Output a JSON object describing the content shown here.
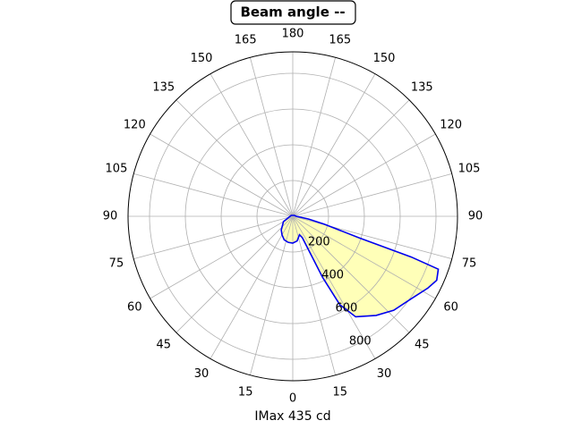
{
  "chart_data": {
    "type": "polar",
    "title": "Beam angle --",
    "xlabel": "IMax 435 cd",
    "x": [
      0,
      10,
      20,
      24,
      26,
      28,
      32,
      40,
      47,
      55,
      62,
      66,
      70,
      71,
      72,
      76,
      80,
      90,
      120,
      180,
      240,
      300,
      320,
      330,
      340,
      350,
      360
    ],
    "values": [
      150,
      140,
      110,
      130,
      380,
      560,
      663,
      724,
      771,
      806,
      855,
      880,
      865,
      700,
      388,
      180,
      90,
      20,
      10,
      5,
      10,
      60,
      100,
      120,
      140,
      148,
      150
    ],
    "color": "#0000ee",
    "fill_color": "#ffffb8",
    "xlim": [
      0,
      360
    ],
    "xticks": [
      0,
      15,
      30,
      45,
      60,
      75,
      90,
      105,
      120,
      135,
      150,
      165,
      180,
      {
        "value": 195,
        "label": "165"
      },
      {
        "value": 210,
        "label": "150"
      },
      {
        "value": 225,
        "label": "135"
      },
      {
        "value": 240,
        "label": "120"
      },
      {
        "value": 255,
        "label": "105"
      },
      {
        "value": 270,
        "label": "90"
      },
      {
        "value": 285,
        "label": "75"
      },
      {
        "value": 300,
        "label": "60"
      },
      {
        "value": 315,
        "label": "45"
      },
      {
        "value": 330,
        "label": "30"
      },
      {
        "value": 345,
        "label": "15"
      }
    ],
    "ylim": [
      0,
      920
    ],
    "yticks": [
      200,
      400,
      600,
      800
    ],
    "grid": true
  }
}
